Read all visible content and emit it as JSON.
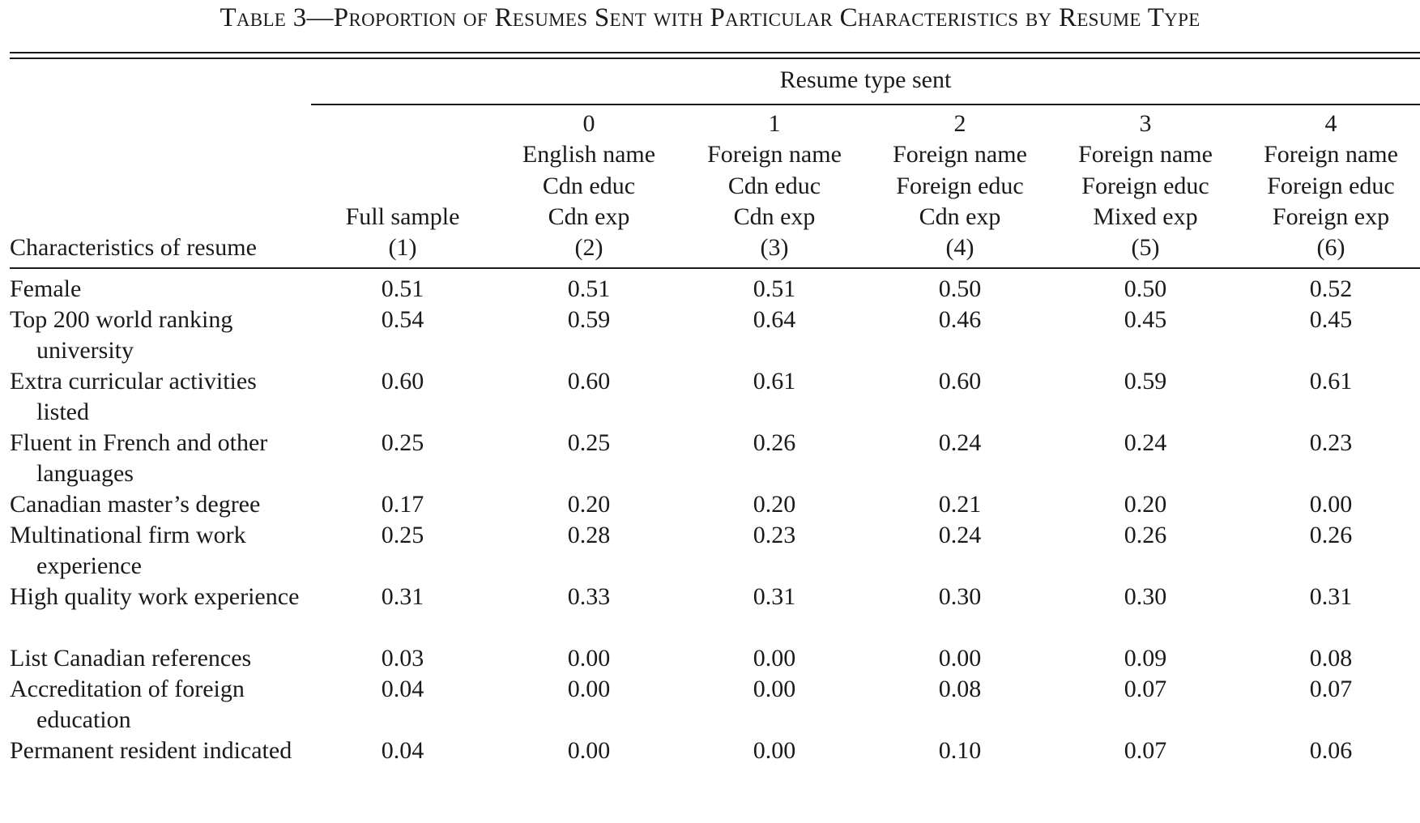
{
  "title": "Table 3—Proportion of Resumes Sent with Particular Characteristics by Resume Type",
  "spanner": "Resume type sent",
  "stub_header": "Characteristics of resume",
  "columns": [
    {
      "lines": [
        "",
        "",
        "",
        "Full sample",
        "(1)"
      ]
    },
    {
      "lines": [
        "0",
        "English name",
        "Cdn educ",
        "Cdn exp",
        "(2)"
      ]
    },
    {
      "lines": [
        "1",
        "Foreign name",
        "Cdn educ",
        "Cdn exp",
        "(3)"
      ]
    },
    {
      "lines": [
        "2",
        "Foreign name",
        "Foreign educ",
        "Cdn exp",
        "(4)"
      ]
    },
    {
      "lines": [
        "3",
        "Foreign name",
        "Foreign educ",
        "Mixed exp",
        "(5)"
      ]
    },
    {
      "lines": [
        "4",
        "Foreign name",
        "Foreign educ",
        "Foreign exp",
        "(6)"
      ]
    }
  ],
  "rows": [
    {
      "label": "Female",
      "values": [
        "0.51",
        "0.51",
        "0.51",
        "0.50",
        "0.50",
        "0.52"
      ]
    },
    {
      "label": "Top 200 world ranking university",
      "values": [
        "0.54",
        "0.59",
        "0.64",
        "0.46",
        "0.45",
        "0.45"
      ]
    },
    {
      "label": "Extra curricular activities listed",
      "values": [
        "0.60",
        "0.60",
        "0.61",
        "0.60",
        "0.59",
        "0.61"
      ]
    },
    {
      "label": "Fluent in French and other languages",
      "values": [
        "0.25",
        "0.25",
        "0.26",
        "0.24",
        "0.24",
        "0.23"
      ]
    },
    {
      "label": "Canadian master’s degree",
      "values": [
        "0.17",
        "0.20",
        "0.20",
        "0.21",
        "0.20",
        "0.00"
      ]
    },
    {
      "label": "Multinational firm work experience",
      "values": [
        "0.25",
        "0.28",
        "0.23",
        "0.24",
        "0.26",
        "0.26"
      ]
    },
    {
      "label": "High quality work experience",
      "values": [
        "0.31",
        "0.33",
        "0.31",
        "0.30",
        "0.30",
        "0.31"
      ]
    },
    {
      "label": "List Canadian references",
      "values": [
        "0.03",
        "0.00",
        "0.00",
        "0.00",
        "0.09",
        "0.08"
      ]
    },
    {
      "label": "Accreditation of foreign education",
      "values": [
        "0.04",
        "0.00",
        "0.00",
        "0.08",
        "0.07",
        "0.07"
      ]
    },
    {
      "label": "Permanent resident indicated",
      "values": [
        "0.04",
        "0.00",
        "0.00",
        "0.10",
        "0.07",
        "0.06"
      ]
    }
  ]
}
